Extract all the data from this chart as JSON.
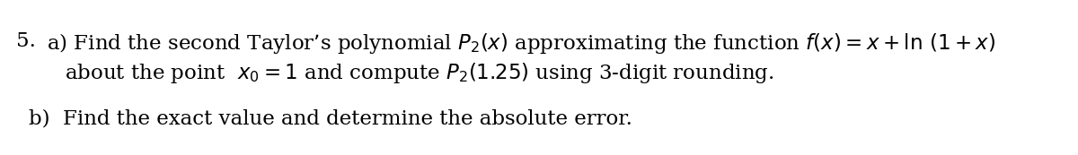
{
  "background_color": "#ffffff",
  "text_color": "#000000",
  "font_size": 16.5,
  "fig_width": 12.0,
  "fig_height": 1.73,
  "dpi": 100,
  "line1_num": "5.",
  "line1_a": "a) Find the second Taylor’s polynomial $P_2(x)$ approximating the function $f(x) = x + \\ln\\,(1 + x)$",
  "line2": "about the point  $x_0 = 1$ and compute $P_2(1.25)$ using 3-digit rounding.",
  "line3": "b)  Find the exact value and determine the absolute error."
}
